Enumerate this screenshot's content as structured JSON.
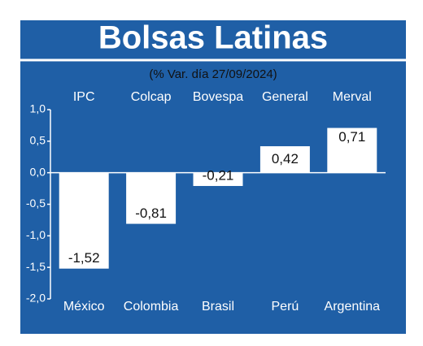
{
  "chart_data": {
    "type": "bar",
    "title": "Bolsas Latinas",
    "subtitle": "(% Var. día 27/09/2024)",
    "indices": [
      "IPC",
      "Colcap",
      "Bovespa",
      "General",
      "Merval"
    ],
    "categories": [
      "México",
      "Colombia",
      "Brasil",
      "Perú",
      "Argentina"
    ],
    "values": [
      -1.52,
      -0.81,
      -0.21,
      0.42,
      0.71
    ],
    "value_labels": [
      "-1,52",
      "-0,81",
      "-0,21",
      "0,42",
      "0,71"
    ],
    "color": "#ffffff",
    "ylim": [
      -2.0,
      1.0
    ],
    "yticks": [
      {
        "value": 1.0,
        "label": "1,0"
      },
      {
        "value": 0.5,
        "label": "0,5"
      },
      {
        "value": 0.0,
        "label": "0,0"
      },
      {
        "value": -0.5,
        "label": "-0,5"
      },
      {
        "value": -1.0,
        "label": "-1,0"
      },
      {
        "value": -1.5,
        "label": "-1,5"
      },
      {
        "value": -2.0,
        "label": "-2,0"
      }
    ],
    "grid": false
  }
}
